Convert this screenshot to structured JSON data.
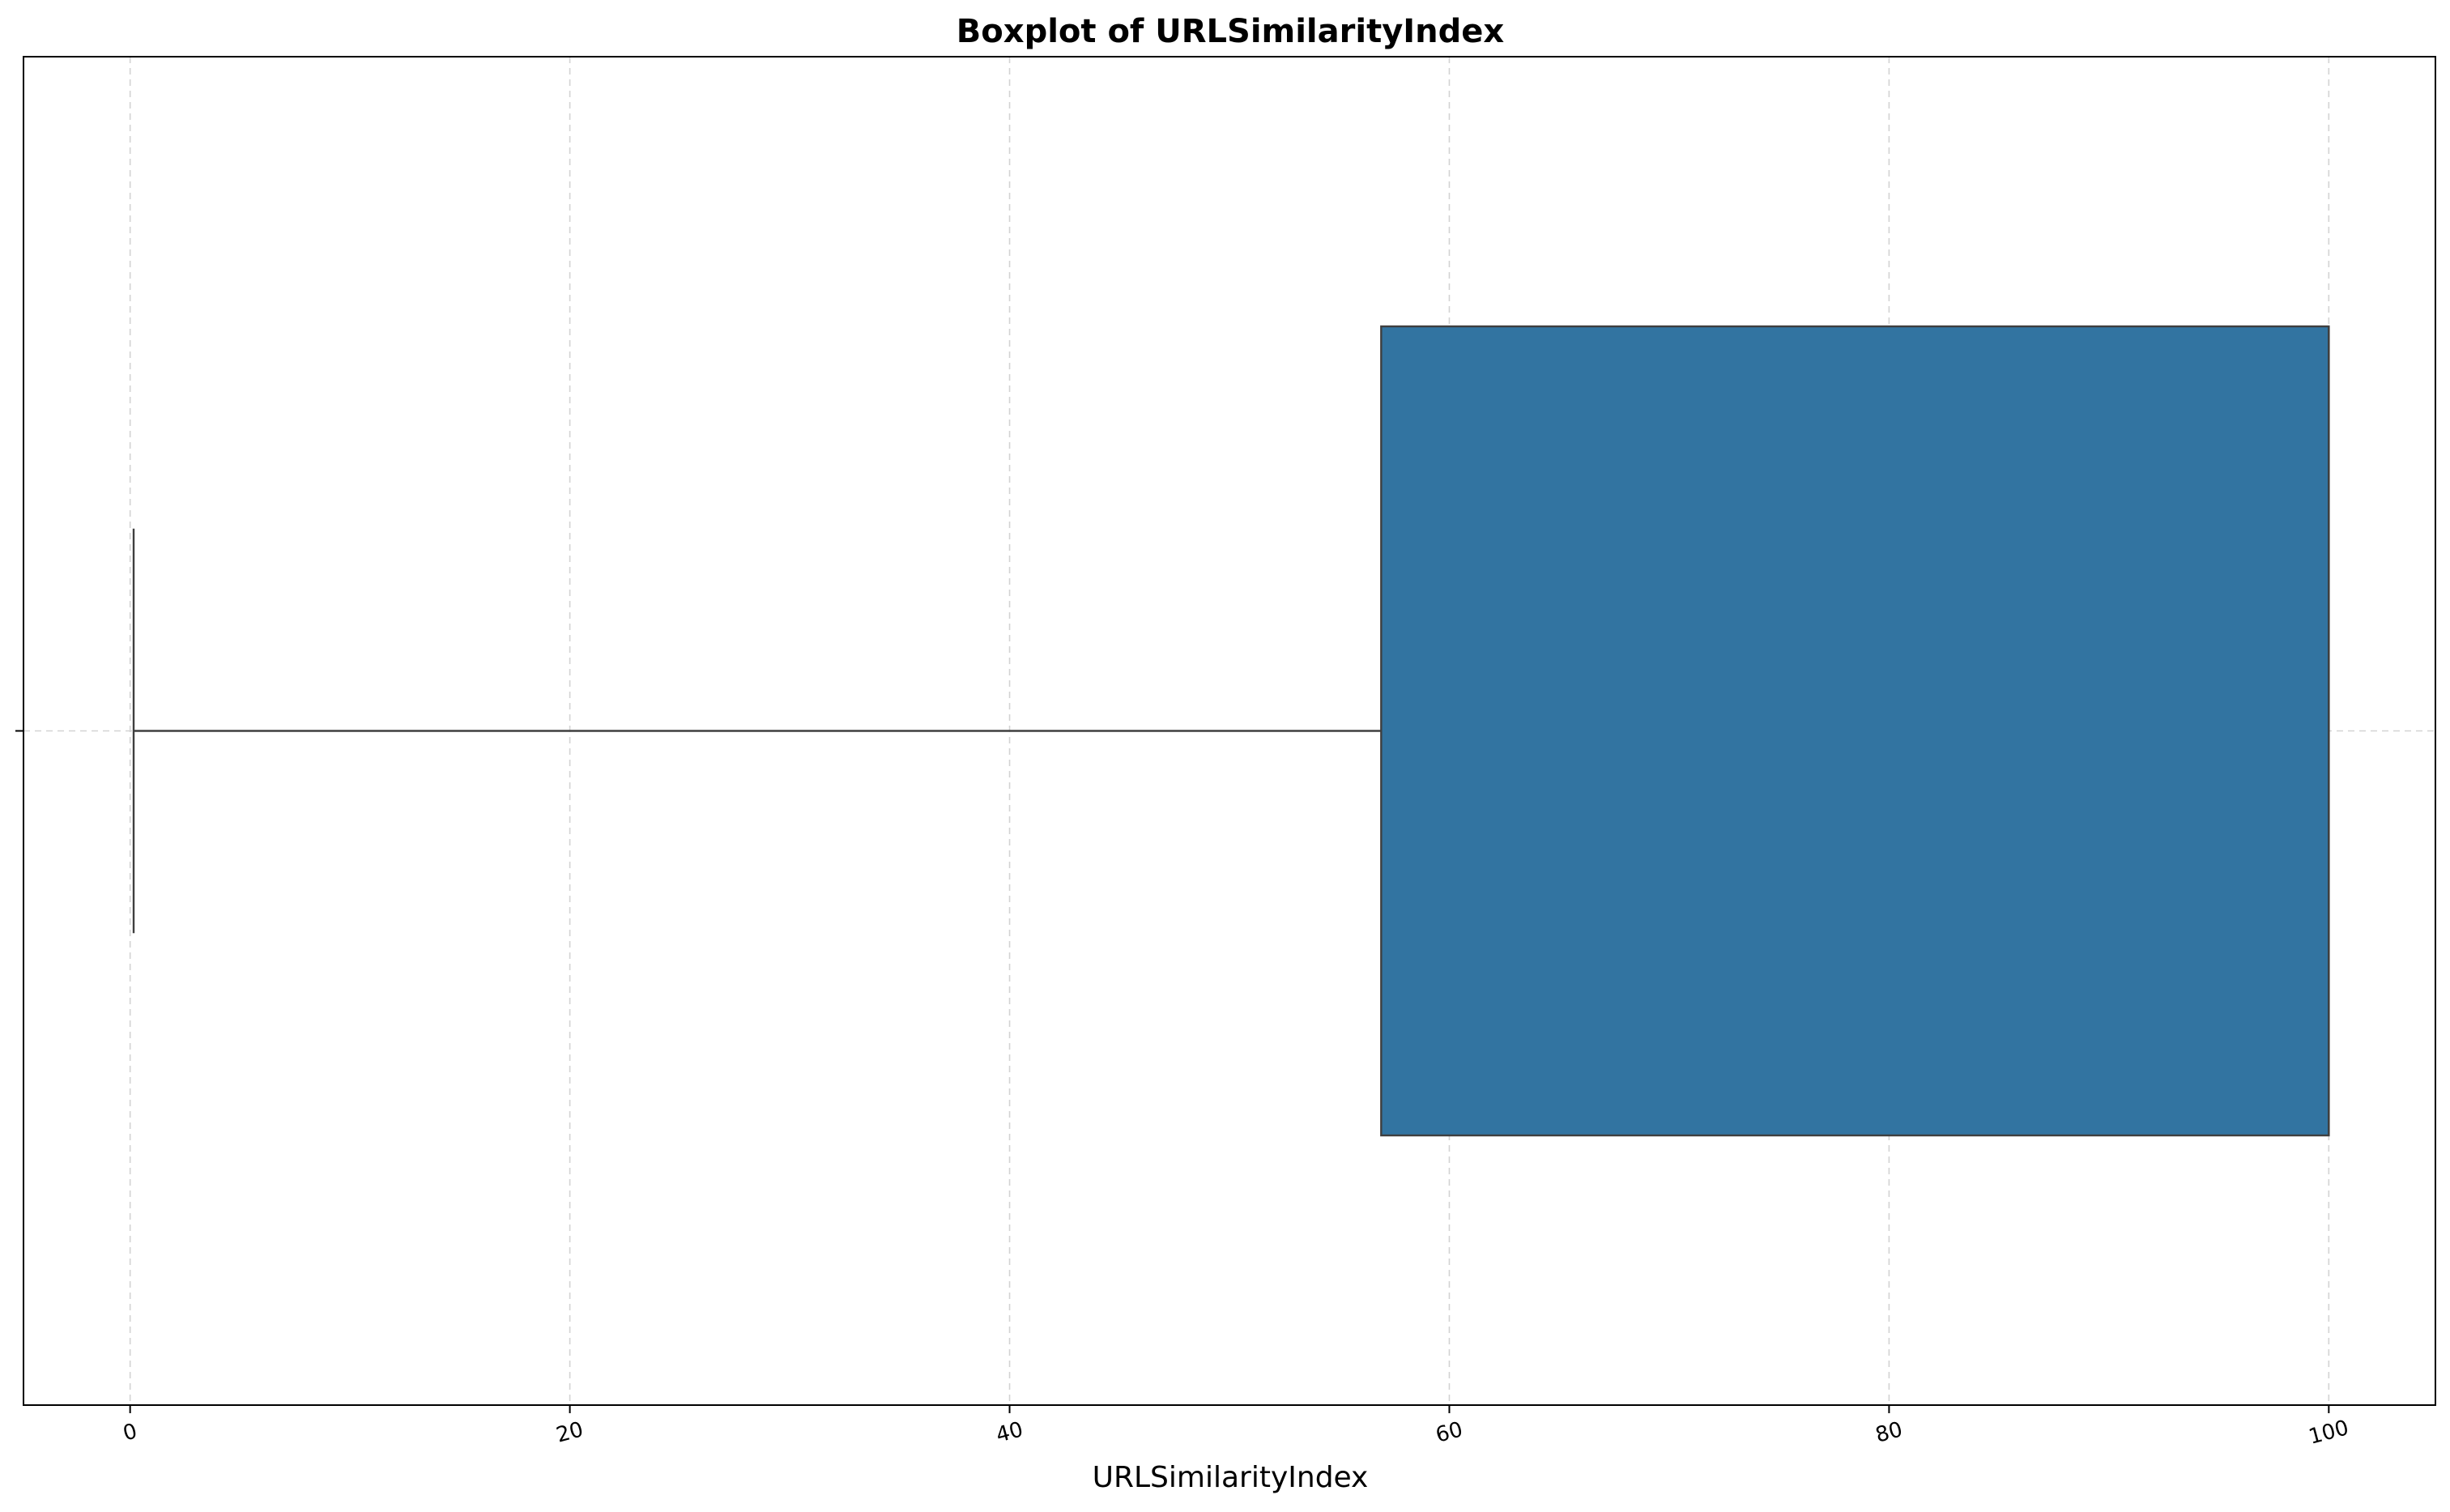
{
  "chart_data": {
    "type": "box",
    "title": "Boxplot of URLSimilarityIndex",
    "xlabel": "URLSimilarityIndex",
    "ylabel": "",
    "orientation": "horizontal",
    "xlim": [
      -4.85,
      104.85
    ],
    "x_ticks": [
      0,
      20,
      40,
      60,
      80,
      100
    ],
    "x_tick_labels": [
      "0",
      "20",
      "40",
      "60",
      "80",
      "100"
    ],
    "grid": true,
    "box": {
      "whisker_low": 0.16,
      "q1": 56.9,
      "median": 100,
      "q3": 100,
      "whisker_high": 100
    },
    "colors": {
      "box_fill": "#3274a1",
      "box_edge": "#3f3f3f",
      "grid": "#d3d3d3",
      "axes": "#000000"
    }
  }
}
